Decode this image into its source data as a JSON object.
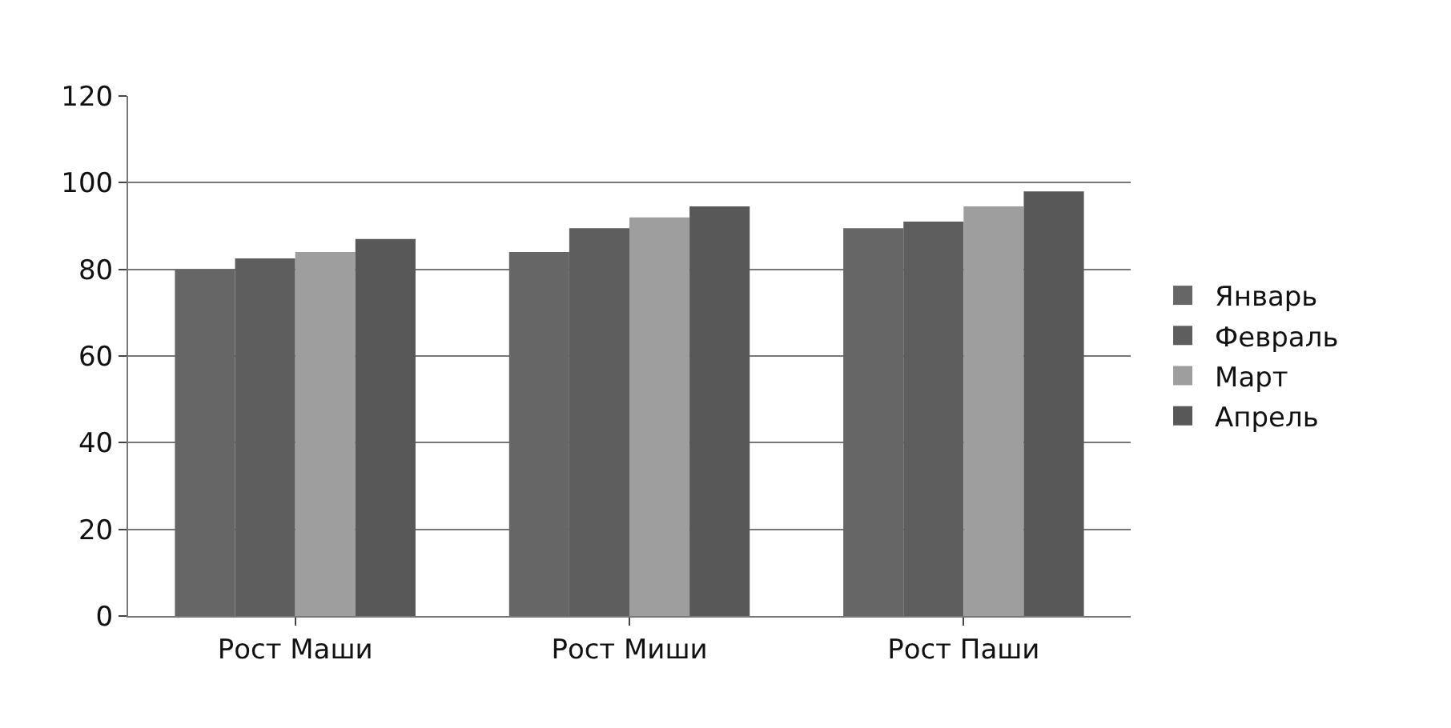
{
  "chart_data": {
    "type": "bar",
    "categories": [
      "Рост Маши",
      "Рост Миши",
      "Рост Паши"
    ],
    "series": [
      {
        "name": "Январь",
        "color": "#666666",
        "values": [
          80,
          84,
          89.5
        ]
      },
      {
        "name": "Февраль",
        "color": "#5e5e5e",
        "values": [
          82.5,
          89.5,
          91
        ]
      },
      {
        "name": "Март",
        "color": "#9e9e9e",
        "values": [
          84,
          92,
          94.5
        ]
      },
      {
        "name": "Апрель",
        "color": "#585858",
        "values": [
          87,
          94.5,
          98
        ]
      }
    ],
    "ylim": [
      0,
      120
    ],
    "yticks": [
      0,
      20,
      40,
      60,
      80,
      100,
      120
    ],
    "grid": "y",
    "legend": "right"
  }
}
